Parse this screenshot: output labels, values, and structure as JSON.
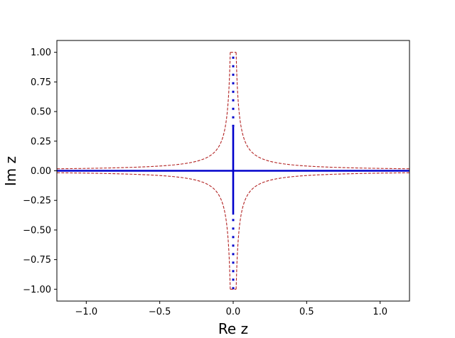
{
  "chart_data": {
    "type": "line",
    "title": "",
    "xlabel": "Re z",
    "ylabel": "Im z",
    "xlim": [
      -1.2,
      1.2
    ],
    "ylim": [
      -1.1,
      1.1
    ],
    "grid": false,
    "x_ticks": [
      {
        "value": -1.0,
        "label": "−1.0"
      },
      {
        "value": -0.5,
        "label": "−0.5"
      },
      {
        "value": 0.0,
        "label": "0.0"
      },
      {
        "value": 0.5,
        "label": "0.5"
      },
      {
        "value": 1.0,
        "label": "1.0"
      }
    ],
    "y_ticks": [
      {
        "value": -1.0,
        "label": "−1.00"
      },
      {
        "value": -0.75,
        "label": "−0.75"
      },
      {
        "value": -0.5,
        "label": "−0.50"
      },
      {
        "value": -0.25,
        "label": "−0.25"
      },
      {
        "value": 0.0,
        "label": "0.00"
      },
      {
        "value": 0.25,
        "label": "0.25"
      },
      {
        "value": 0.5,
        "label": "0.50"
      },
      {
        "value": 0.75,
        "label": "0.75"
      },
      {
        "value": 1.0,
        "label": "1.00"
      }
    ],
    "series": [
      {
        "style": "solid",
        "color": "#0000cc",
        "segments": [
          [
            [
              -1.2,
              0.0
            ],
            [
              1.2,
              0.0
            ]
          ],
          [
            [
              0.0,
              -0.37
            ],
            [
              0.0,
              0.37
            ]
          ]
        ]
      },
      {
        "style": "dotted",
        "color": "#0000cc",
        "segments": [
          [
            [
              0.0,
              0.37
            ],
            [
              0.0,
              1.0
            ]
          ],
          [
            [
              0.0,
              -1.0
            ],
            [
              0.0,
              -0.37
            ]
          ]
        ]
      },
      {
        "style": "dashed",
        "color": "#b22222",
        "contour": {
          "a": 0.02,
          "y_top": 1.0,
          "y_bottom": -1.0,
          "x_cap": 0.02,
          "x_extent": 1.2
        }
      }
    ]
  }
}
